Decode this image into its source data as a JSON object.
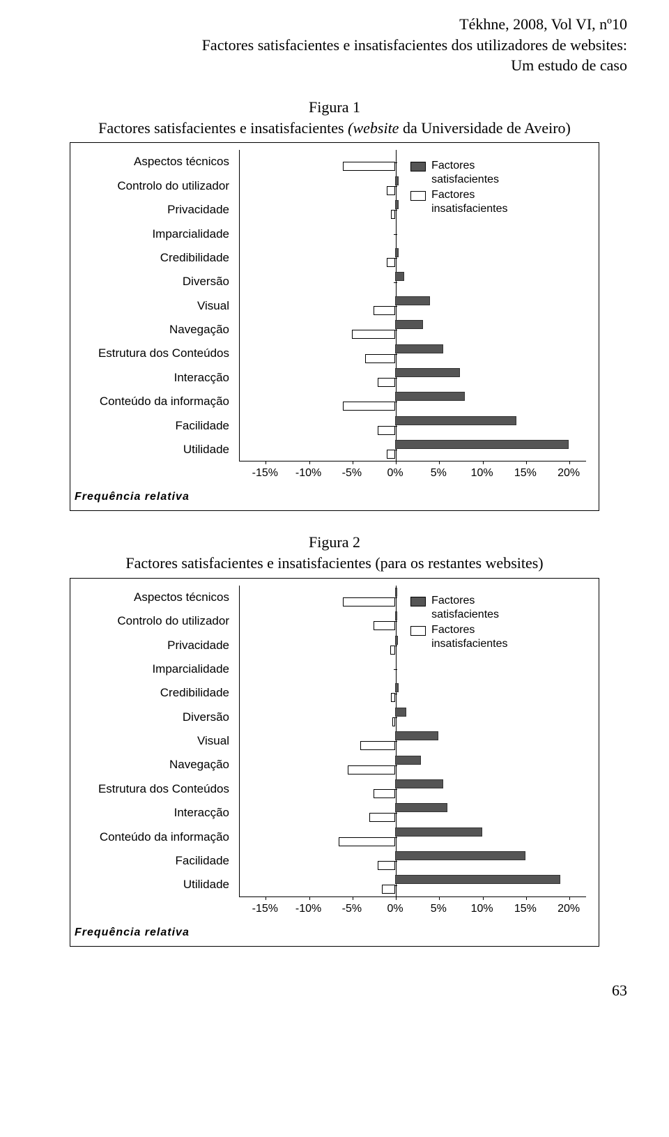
{
  "header": {
    "line1": "Tékhne, 2008, Vol VI, nº10",
    "line2": "Factores satisfacientes e insatisfacientes dos utilizadores de websites:",
    "line3": "Um estudo de caso"
  },
  "page_number": "63",
  "axis": {
    "label": "Frequência  relativa",
    "ticks": [
      {
        "pct": -15,
        "label": "-15%"
      },
      {
        "pct": -10,
        "label": "-10%"
      },
      {
        "pct": -5,
        "label": "-5%"
      },
      {
        "pct": 0,
        "label": "0%"
      },
      {
        "pct": 5,
        "label": "5%"
      },
      {
        "pct": 10,
        "label": "10%"
      },
      {
        "pct": 15,
        "label": "15%"
      },
      {
        "pct": 20,
        "label": "20%"
      }
    ],
    "min": -18,
    "max": 22
  },
  "legend": {
    "sat_label": "Factores\nsatisfacientes",
    "unsat_label": "Factores\ninsatisfacientes",
    "top_offset_rows": 0.3
  },
  "colors": {
    "sat_fill": "#555555",
    "unsat_fill": "#ffffff",
    "border": "#000000",
    "background": "#ffffff"
  },
  "categories": [
    "Aspectos técnicos",
    "Controlo do utilizador",
    "Privacidade",
    "Imparcialidade",
    "Credibilidade",
    "Diversão",
    "Visual",
    "Navegação",
    "Estrutura dos Conteúdos",
    "Interacção",
    "Conteúdo da informação",
    "Facilidade",
    "Utilidade"
  ],
  "figure1": {
    "caption_line1": "Figura 1",
    "caption_line2_a": "Factores satisfacientes e insatisfacientes ",
    "caption_line2_b": "(website",
    "caption_line2_c": " da Universidade de Aveiro)",
    "sat": [
      0.0,
      0.4,
      0.4,
      0.0,
      0.4,
      1.0,
      4.0,
      3.2,
      5.5,
      7.5,
      8.0,
      14.0,
      20.0
    ],
    "unsat": [
      -6.0,
      -1.0,
      -0.5,
      0.0,
      -1.0,
      0.0,
      -2.5,
      -5.0,
      -3.5,
      -2.0,
      -6.0,
      -2.0,
      -1.0
    ]
  },
  "figure2": {
    "caption_line1": "Figura 2",
    "caption_line2": "Factores satisfacientes e insatisfacientes (para os restantes websites)",
    "sat": [
      0.2,
      0.2,
      0.3,
      0.0,
      0.4,
      1.3,
      5.0,
      3.0,
      5.5,
      6.0,
      10.0,
      15.0,
      19.0
    ],
    "unsat": [
      -6.0,
      -2.5,
      -0.6,
      0.0,
      -0.5,
      -0.3,
      -4.0,
      -5.5,
      -2.5,
      -3.0,
      -6.5,
      -2.0,
      -1.5
    ]
  }
}
